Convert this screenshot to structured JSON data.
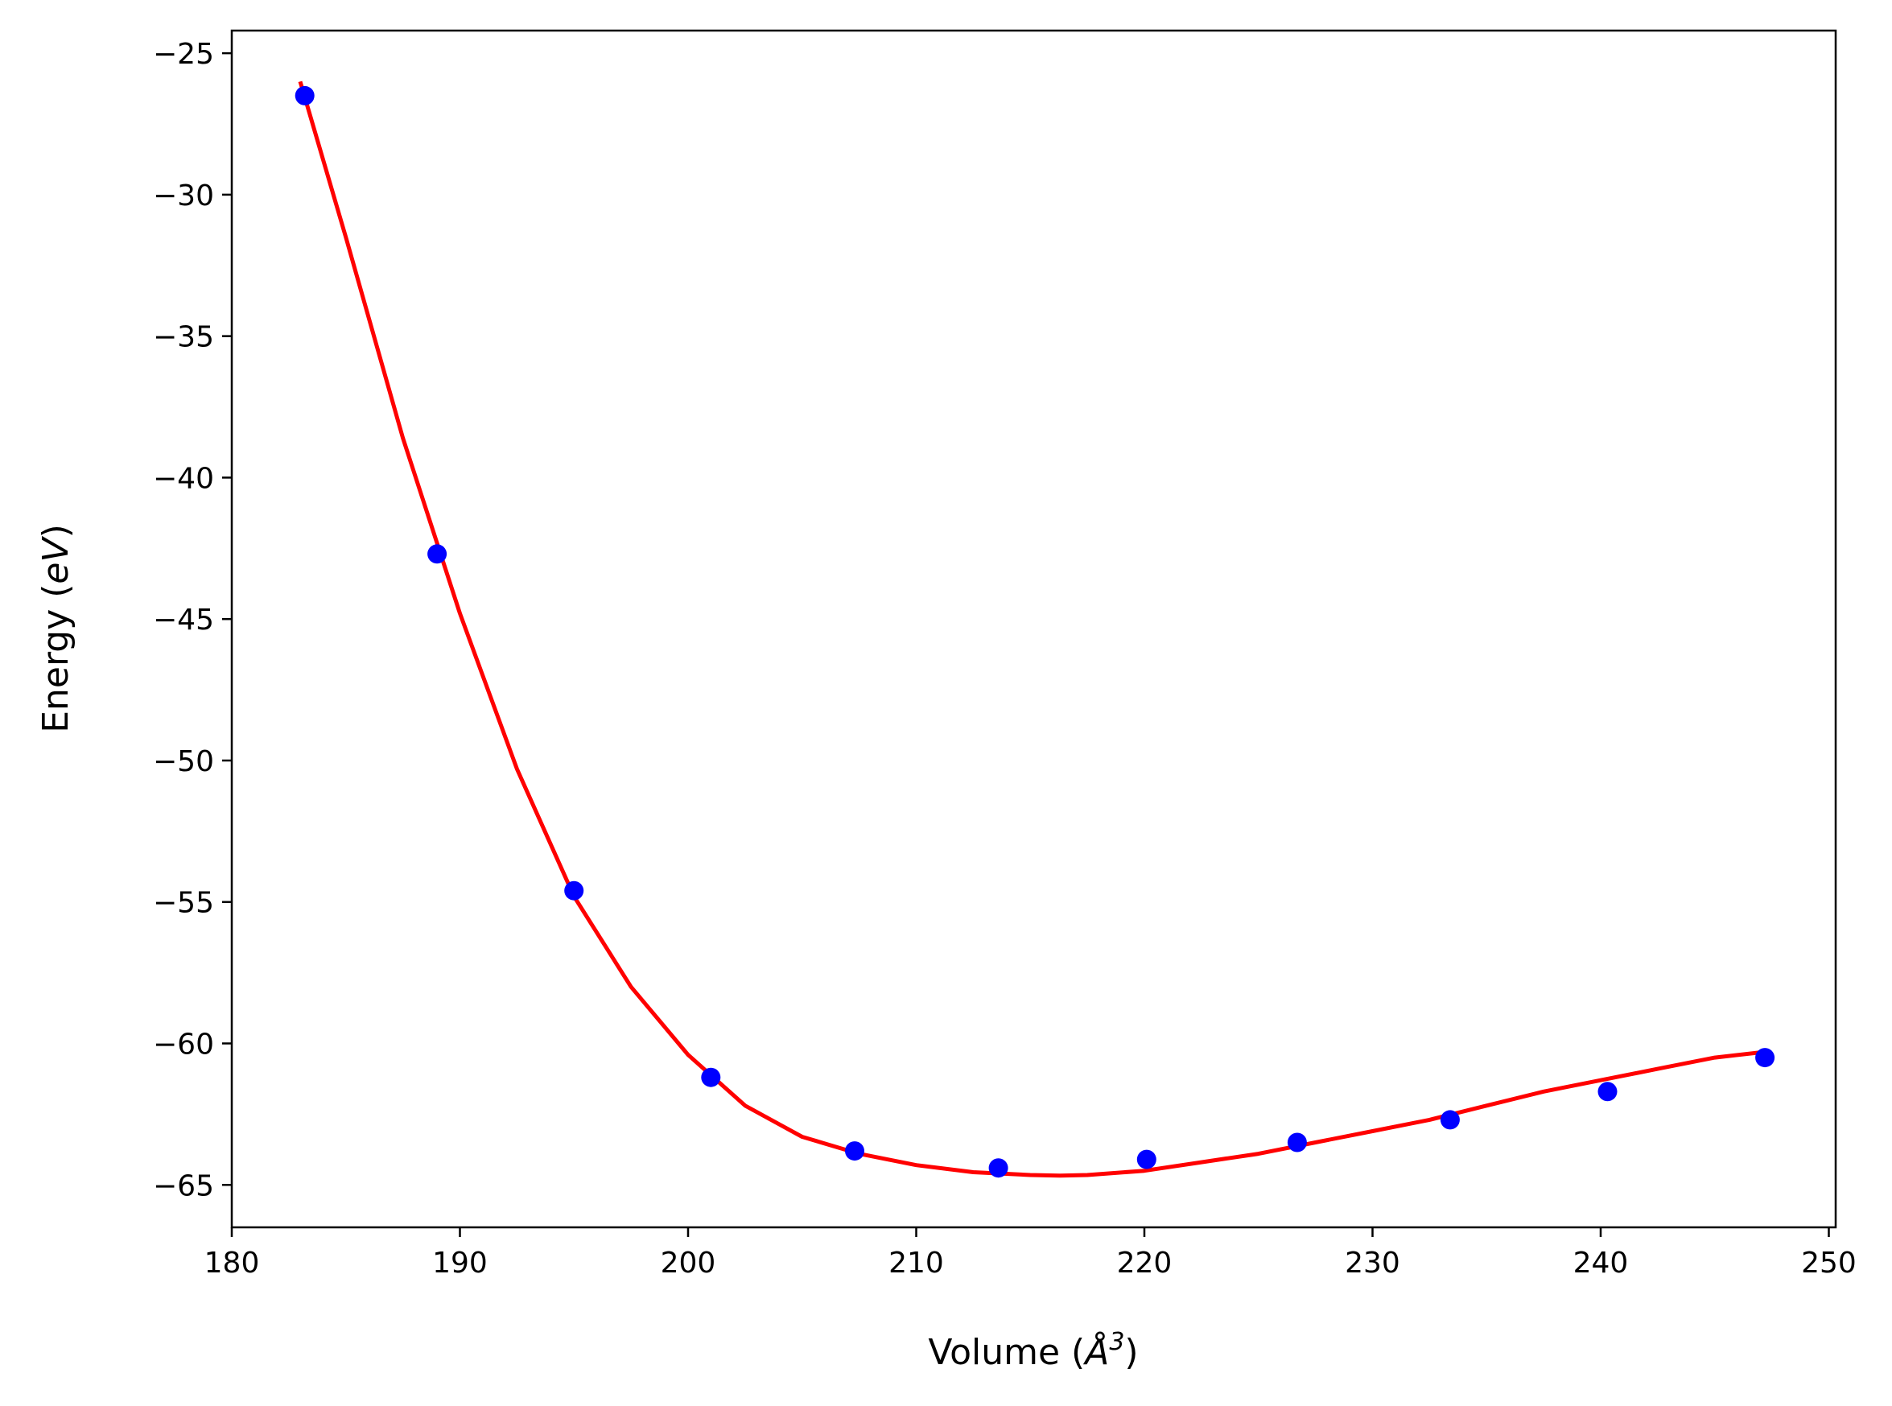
{
  "chart_data": {
    "type": "scatter",
    "title": "",
    "xlabel": "Volume (",
    "xlabel_unit": "Å",
    "xlabel_exp": "3",
    "xlabel_close": ")",
    "ylabel": "Energy (",
    "ylabel_unit": "eV",
    "ylabel_close": ")",
    "xlim": [
      180,
      250.3
    ],
    "ylim": [
      -66.5,
      -24.2
    ],
    "xticks": [
      180,
      190,
      200,
      210,
      220,
      230,
      240,
      250
    ],
    "yticks": [
      -25,
      -30,
      -35,
      -40,
      -45,
      -50,
      -55,
      -60,
      -65
    ],
    "ytick_labels": [
      "−25",
      "−30",
      "−35",
      "−40",
      "−45",
      "−50",
      "−55",
      "−60",
      "−65"
    ],
    "grid": false,
    "series": [
      {
        "kind": "points",
        "color": "#0000ff",
        "x": [
          183.2,
          189.0,
          195.0,
          201.0,
          207.3,
          213.6,
          220.1,
          226.7,
          233.4,
          240.3,
          247.2
        ],
        "y": [
          -26.5,
          -42.7,
          -54.6,
          -61.2,
          -63.8,
          -64.4,
          -64.1,
          -63.5,
          -62.7,
          -61.7,
          -60.5
        ]
      },
      {
        "kind": "fit-line",
        "color": "#ff0000",
        "x": [
          183.0,
          185.0,
          187.5,
          190.0,
          192.5,
          195.0,
          197.5,
          200.0,
          202.5,
          205.0,
          207.5,
          210.0,
          212.5,
          215.0,
          216.3,
          217.5,
          220.0,
          222.5,
          225.0,
          227.5,
          230.0,
          232.5,
          235.0,
          237.5,
          240.0,
          242.5,
          245.0,
          247.2
        ],
        "y": [
          -26.0,
          -31.5,
          -38.6,
          -44.8,
          -50.3,
          -54.8,
          -58.0,
          -60.4,
          -62.2,
          -63.3,
          -63.9,
          -64.3,
          -64.55,
          -64.65,
          -64.67,
          -64.65,
          -64.5,
          -64.2,
          -63.9,
          -63.5,
          -63.1,
          -62.7,
          -62.2,
          -61.7,
          -61.3,
          -60.9,
          -60.5,
          -60.3
        ]
      }
    ]
  }
}
